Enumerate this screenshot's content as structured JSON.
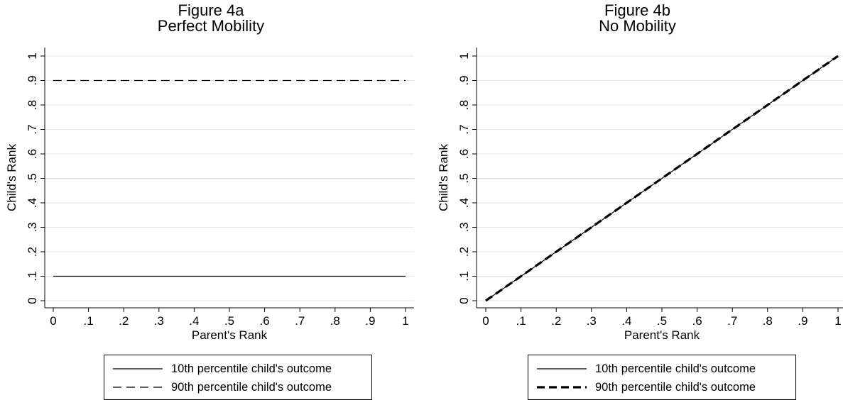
{
  "chart_data": [
    {
      "type": "line",
      "title": "Figure 4a",
      "subtitle": "Perfect Mobility",
      "xlabel": "Parent's Rank",
      "ylabel": "Child's Rank",
      "xlim": [
        0,
        1
      ],
      "ylim": [
        0,
        1
      ],
      "xticks": [
        "0",
        ".1",
        ".2",
        ".3",
        ".4",
        ".5",
        ".6",
        ".7",
        ".8",
        ".9",
        "1"
      ],
      "yticks": [
        "0",
        ".1",
        ".2",
        ".3",
        ".4",
        ".5",
        ".6",
        ".7",
        ".8",
        ".9",
        "1"
      ],
      "grid": true,
      "legend_position": "bottom",
      "series": [
        {
          "name": "10th percentile child's outcome",
          "style": "solid",
          "x": [
            0,
            1
          ],
          "y": [
            0.1,
            0.1
          ]
        },
        {
          "name": "90th percentile child's outcome",
          "style": "dashed",
          "x": [
            0,
            1
          ],
          "y": [
            0.9,
            0.9
          ]
        }
      ]
    },
    {
      "type": "line",
      "title": "Figure 4b",
      "subtitle": "No Mobility",
      "xlabel": "Parent's Rank",
      "ylabel": "Child's Rank",
      "xlim": [
        0,
        1
      ],
      "ylim": [
        0,
        1
      ],
      "xticks": [
        "0",
        ".1",
        ".2",
        ".3",
        ".4",
        ".5",
        ".6",
        ".7",
        ".8",
        ".9",
        "1"
      ],
      "yticks": [
        "0",
        ".1",
        ".2",
        ".3",
        ".4",
        ".5",
        ".6",
        ".7",
        ".8",
        ".9",
        "1"
      ],
      "grid": true,
      "legend_position": "bottom",
      "series": [
        {
          "name": "10th percentile child's outcome",
          "style": "solid",
          "x": [
            0,
            1
          ],
          "y": [
            0,
            1
          ]
        },
        {
          "name": "90th percentile child's outcome",
          "style": "bold-dashed",
          "x": [
            0,
            1
          ],
          "y": [
            0,
            1
          ]
        }
      ]
    }
  ]
}
